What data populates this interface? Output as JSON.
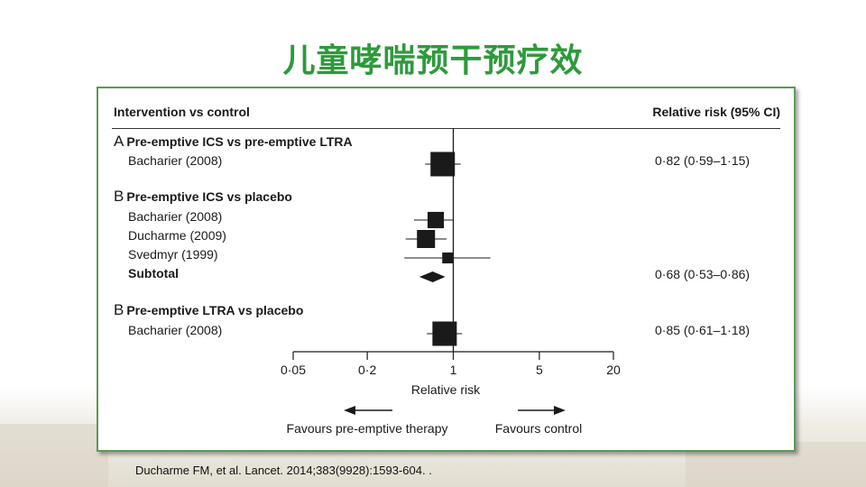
{
  "slide": {
    "title": "儿童哮喘预干预疗效",
    "citation": "Ducharme FM, et al. Lancet. 2014;383(9928):1593-604. ."
  },
  "colors": {
    "title": "#2e9a3c",
    "panel_border": "#5a9a56",
    "marks": "#1a1a1a"
  },
  "chart_data": {
    "type": "forest",
    "header_left": "Intervention vs control",
    "header_right": "Relative risk (95% CI)",
    "xlabel": "Relative risk",
    "x_scale": "log",
    "xlim": [
      0.05,
      20
    ],
    "xticks": [
      0.05,
      0.2,
      1,
      5,
      20
    ],
    "xtick_labels": [
      "0·05",
      "0·2",
      "1",
      "5",
      "20"
    ],
    "favours_left": "Favours pre-emptive therapy",
    "favours_right": "Favours control",
    "groups": [
      {
        "letter": "A",
        "title": "Pre-emptive ICS vs pre-emptive LTRA",
        "rows": [
          {
            "label": "Bacharier (2008)",
            "rr": 0.82,
            "lo": 0.59,
            "hi": 1.15,
            "weight": 1.0,
            "ci_text": "0·82 (0·59–1·15)"
          }
        ]
      },
      {
        "letter": "B",
        "title": "Pre-emptive ICS vs placebo",
        "rows": [
          {
            "label": "Bacharier (2008)",
            "rr": 0.72,
            "lo": 0.48,
            "hi": 1.0,
            "weight": 0.45,
            "ci_text": ""
          },
          {
            "label": "Ducharme (2009)",
            "rr": 0.6,
            "lo": 0.41,
            "hi": 0.88,
            "weight": 0.55,
            "ci_text": ""
          },
          {
            "label": "Svedmyr (1999)",
            "rr": 0.9,
            "lo": 0.4,
            "hi": 2.0,
            "weight": 0.2,
            "ci_text": ""
          }
        ],
        "subtotal": {
          "label": "Subtotal",
          "rr": 0.68,
          "lo": 0.53,
          "hi": 0.86,
          "ci_text": "0·68 (0·53–0·86)"
        }
      },
      {
        "letter": "B",
        "title": "Pre-emptive LTRA vs placebo",
        "rows": [
          {
            "label": "Bacharier (2008)",
            "rr": 0.85,
            "lo": 0.61,
            "hi": 1.18,
            "weight": 1.0,
            "ci_text": "0·85 (0·61–1·18)"
          }
        ]
      }
    ]
  }
}
